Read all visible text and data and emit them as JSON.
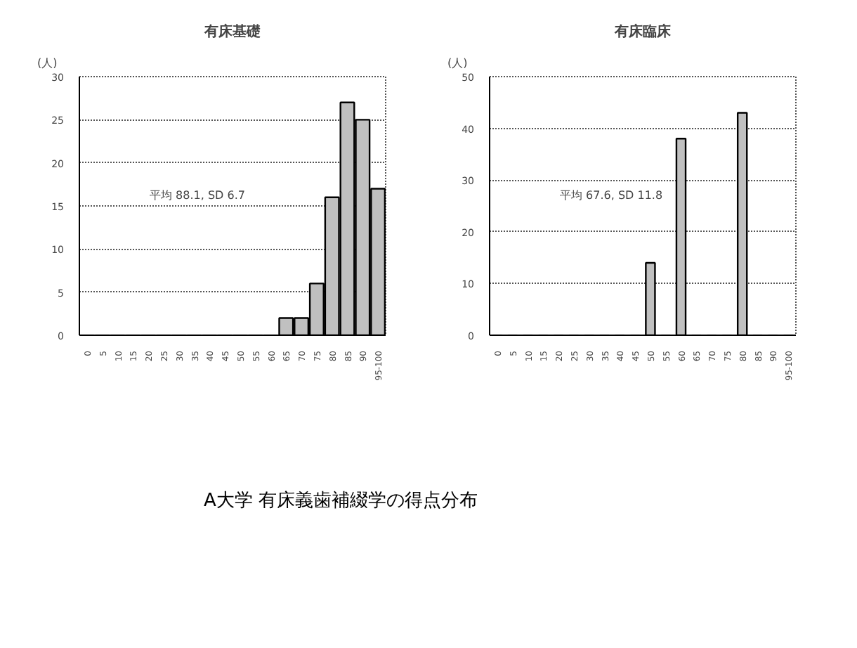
{
  "chart_data": [
    {
      "type": "bar",
      "title": "有床基礎",
      "ylabel": "(人)",
      "categories": [
        "0",
        "5",
        "10",
        "15",
        "20",
        "25",
        "30",
        "35",
        "40",
        "45",
        "50",
        "55",
        "60",
        "65",
        "70",
        "75",
        "80",
        "85",
        "90",
        "95-100"
      ],
      "values": [
        0,
        0,
        0,
        0,
        0,
        0,
        0,
        0,
        0,
        0,
        0,
        0,
        0,
        2,
        2,
        6,
        16,
        27,
        25,
        17
      ],
      "color": "#c0c0c0",
      "ylim": [
        0,
        30
      ],
      "yticks": [
        0,
        5,
        10,
        15,
        20,
        25,
        30
      ],
      "grid": "y",
      "annotations": [
        "平均 88.1, SD 6.7"
      ]
    },
    {
      "type": "bar",
      "title": "有床臨床",
      "ylabel": "(人)",
      "categories": [
        "0",
        "5",
        "10",
        "15",
        "20",
        "25",
        "30",
        "35",
        "40",
        "45",
        "50",
        "55",
        "60",
        "65",
        "70",
        "75",
        "80",
        "85",
        "90",
        "95-100"
      ],
      "values": [
        0,
        0,
        0,
        0,
        0,
        0,
        0,
        0,
        0,
        0,
        14,
        0,
        38,
        0,
        0,
        0,
        43,
        0,
        0,
        0
      ],
      "color": "#c0c0c0",
      "ylim": [
        0,
        50
      ],
      "yticks": [
        0,
        10,
        20,
        30,
        40,
        50
      ],
      "grid": "y",
      "annotations": [
        "平均 67.6, SD 11.8"
      ]
    },
    {
      "type": "other",
      "title": "A大学  有床義歯補綴学の得点分布"
    }
  ]
}
